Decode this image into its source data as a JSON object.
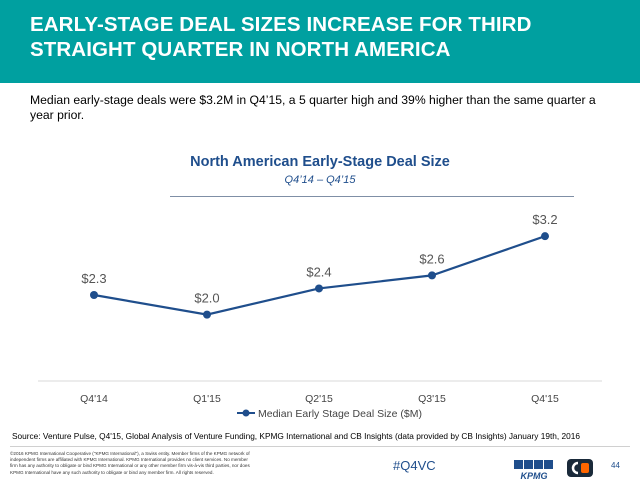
{
  "slide": {
    "title": "EARLY-STAGE DEAL SIZES INCREASE FOR THIRD STRAIGHT QUARTER IN NORTH AMERICA",
    "summary": "Median early-stage deals were $3.2M in Q4’15, a 5 quarter high and 39% higher than the same quarter a year prior.",
    "source": "Source: Venture Pulse, Q4'15, Global Analysis of Venture Funding, KPMG International and CB Insights (data provided by CB Insights) January 19th, 2016",
    "copyright": "©2016 KPMG International Cooperative (\"KPMG International\"), a Swiss entity. Member firms of the KPMG network of independent firms are affiliated with KPMG International. KPMG International provides no client services. No member firm has any authority to obligate or bind KPMG International or any other member firm vis-à-vis third parties, nor does KPMG International have any such authority to obligate or bind any member firm. All rights reserved.",
    "hashtag": "#Q4VC",
    "kpmg_logo_text": "KPMG",
    "page_number": "44"
  },
  "colors": {
    "banner": "#00a0a0",
    "line": "#1f4e8c",
    "title_text": "#1f4e8c"
  },
  "chart_data": {
    "type": "line",
    "title": "North American Early-Stage Deal Size",
    "subtitle": "Q4’14 – Q4’15",
    "categories": [
      "Q4'14",
      "Q1'15",
      "Q2'15",
      "Q3'15",
      "Q4'15"
    ],
    "series": [
      {
        "name": "Median Early Stage Deal Size ($M)",
        "values": [
          2.3,
          2.0,
          2.4,
          2.6,
          3.2
        ],
        "labels": [
          "$2.3",
          "$2.0",
          "$2.4",
          "$2.6",
          "$3.2"
        ]
      }
    ],
    "ylim": [
      1.0,
      3.6
    ],
    "grid": false,
    "legend": "bottom"
  }
}
